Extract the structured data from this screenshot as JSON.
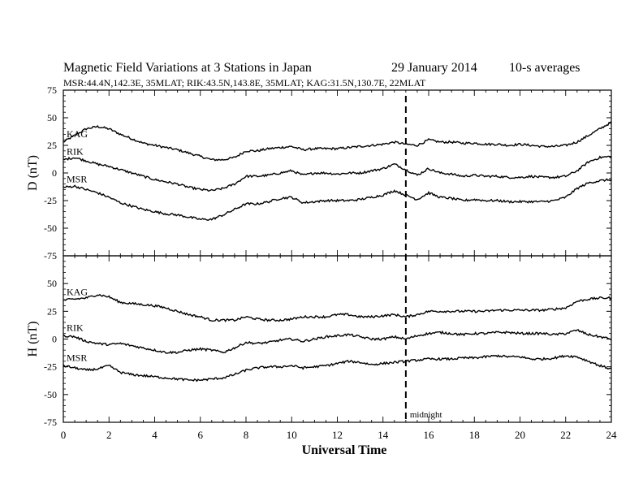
{
  "header": {
    "title": "Magnetic Field Variations at 3 Stations in Japan",
    "date": "29 January 2014",
    "averaging": "10-s averages",
    "stations_line": "MSR:44.4N,142.3E, 35MLAT;  RIK:43.5N,143.8E, 35MLAT;  KAG:31.5N,130.7E, 22MLAT"
  },
  "annotation": {
    "midnight_label": "midnight",
    "midnight_ut": 15
  },
  "chart_data": [
    {
      "type": "line",
      "ylabel": "D (nT)",
      "xlabel": "",
      "xlim": [
        0,
        24
      ],
      "ylim": [
        -75,
        75
      ],
      "x_ticks": [
        0,
        2,
        4,
        6,
        8,
        10,
        12,
        14,
        16,
        18,
        20,
        22,
        24
      ],
      "y_ticks": [
        -75,
        -50,
        -25,
        0,
        25,
        50,
        75
      ],
      "x": [
        0,
        0.5,
        1,
        1.5,
        2,
        2.5,
        3,
        3.5,
        4,
        4.5,
        5,
        5.5,
        6,
        6.5,
        7,
        7.5,
        8,
        8.5,
        9,
        9.5,
        10,
        10.5,
        11,
        11.5,
        12,
        12.5,
        13,
        13.5,
        14,
        14.5,
        15,
        15.5,
        16,
        16.5,
        17,
        17.5,
        18,
        18.5,
        19,
        19.5,
        20,
        20.5,
        21,
        21.5,
        22,
        22.5,
        23,
        23.5,
        24
      ],
      "series": [
        {
          "name": "KAG",
          "values": [
            28,
            34,
            40,
            42,
            40,
            35,
            31,
            27,
            25,
            23,
            21,
            18,
            15,
            12,
            12,
            14,
            20,
            20,
            22,
            23,
            24,
            21,
            22,
            22,
            22,
            23,
            24,
            25,
            26,
            28,
            26,
            25,
            30,
            28,
            28,
            27,
            27,
            26,
            26,
            25,
            26,
            25,
            24,
            24,
            25,
            28,
            34,
            40,
            46
          ]
        },
        {
          "name": "RIK",
          "values": [
            12,
            14,
            11,
            8,
            6,
            3,
            0,
            -3,
            -6,
            -8,
            -10,
            -13,
            -15,
            -16,
            -14,
            -10,
            -3,
            -3,
            -2,
            0,
            2,
            -2,
            0,
            0,
            -1,
            0,
            0,
            2,
            4,
            8,
            3,
            -2,
            4,
            0,
            -1,
            -3,
            -2,
            -3,
            -3,
            -4,
            -4,
            -3,
            -4,
            -4,
            -3,
            2,
            10,
            14,
            15
          ]
        },
        {
          "name": "MSR",
          "values": [
            -13,
            -12,
            -15,
            -18,
            -22,
            -27,
            -30,
            -33,
            -35,
            -37,
            -38,
            -40,
            -42,
            -42,
            -38,
            -33,
            -28,
            -28,
            -26,
            -23,
            -22,
            -27,
            -26,
            -25,
            -25,
            -25,
            -24,
            -22,
            -20,
            -16,
            -20,
            -24,
            -18,
            -22,
            -23,
            -25,
            -24,
            -25,
            -25,
            -26,
            -26,
            -26,
            -26,
            -25,
            -22,
            -14,
            -9,
            -7,
            -6
          ]
        }
      ]
    },
    {
      "type": "line",
      "ylabel": "H (nT)",
      "xlabel": "Universal Time",
      "xlim": [
        0,
        24
      ],
      "ylim": [
        -75,
        75
      ],
      "x_ticks": [
        0,
        2,
        4,
        6,
        8,
        10,
        12,
        14,
        16,
        18,
        20,
        22,
        24
      ],
      "y_ticks": [
        -75,
        -50,
        -25,
        0,
        25,
        50,
        75
      ],
      "x": [
        0,
        0.5,
        1,
        1.5,
        2,
        2.5,
        3,
        3.5,
        4,
        4.5,
        5,
        5.5,
        6,
        6.5,
        7,
        7.5,
        8,
        8.5,
        9,
        9.5,
        10,
        10.5,
        11,
        11.5,
        12,
        12.5,
        13,
        13.5,
        14,
        14.5,
        15,
        15.5,
        16,
        16.5,
        17,
        17.5,
        18,
        18.5,
        19,
        19.5,
        20,
        20.5,
        21,
        21.5,
        22,
        22.5,
        23,
        23.5,
        24
      ],
      "series": [
        {
          "name": "KAG",
          "values": [
            35,
            36,
            37,
            40,
            38,
            33,
            32,
            31,
            30,
            28,
            25,
            22,
            20,
            17,
            17,
            17,
            20,
            18,
            17,
            17,
            18,
            20,
            20,
            20,
            22,
            22,
            20,
            20,
            21,
            22,
            20,
            22,
            25,
            25,
            25,
            25,
            25,
            25,
            26,
            26,
            26,
            26,
            26,
            27,
            28,
            34,
            36,
            37,
            37
          ]
        },
        {
          "name": "RIK",
          "values": [
            3,
            2,
            -2,
            -4,
            -5,
            -4,
            -6,
            -8,
            -10,
            -12,
            -12,
            -10,
            -9,
            -10,
            -12,
            -8,
            -3,
            -4,
            -3,
            -1,
            0,
            -2,
            0,
            2,
            3,
            4,
            2,
            0,
            0,
            2,
            0,
            3,
            5,
            6,
            5,
            4,
            5,
            5,
            6,
            6,
            5,
            5,
            5,
            4,
            5,
            8,
            4,
            2,
            0
          ]
        },
        {
          "name": "MSR",
          "values": [
            -24,
            -26,
            -28,
            -27,
            -24,
            -30,
            -32,
            -33,
            -34,
            -35,
            -36,
            -37,
            -37,
            -36,
            -35,
            -32,
            -28,
            -26,
            -25,
            -25,
            -24,
            -26,
            -25,
            -24,
            -22,
            -20,
            -21,
            -23,
            -22,
            -21,
            -20,
            -19,
            -18,
            -18,
            -18,
            -17,
            -17,
            -16,
            -15,
            -16,
            -16,
            -18,
            -18,
            -17,
            -15,
            -16,
            -20,
            -24,
            -27
          ]
        }
      ]
    }
  ]
}
